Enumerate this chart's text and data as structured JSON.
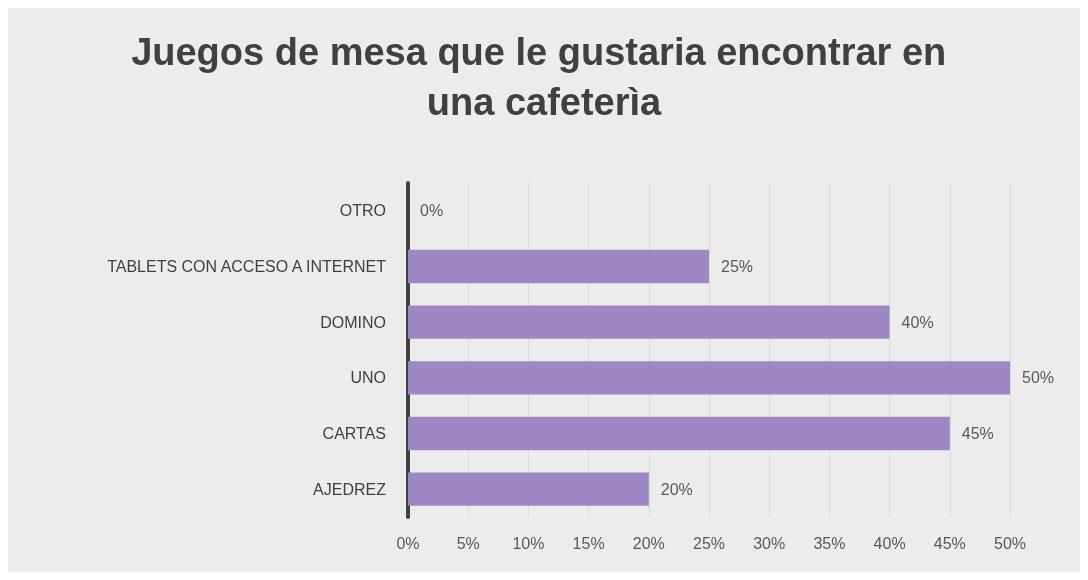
{
  "chart_data": {
    "type": "bar",
    "orientation": "horizontal",
    "title": "Juegos de mesa que le gustaria encontrar en una cafeterìa",
    "categories": [
      "OTRO",
      "TABLETS CON ACCESO A INTERNET",
      "DOMINO",
      "UNO",
      "CARTAS",
      "AJEDREZ"
    ],
    "values": [
      0,
      25,
      40,
      50,
      45,
      20
    ],
    "value_labels": [
      "0%",
      "25%",
      "40%",
      "50%",
      "45%",
      "20%"
    ],
    "color": "#9f86c4",
    "xlim": [
      0,
      50
    ],
    "xticks": [
      {
        "value": 0,
        "label": "0%"
      },
      {
        "value": 5,
        "label": "5%"
      },
      {
        "value": 10,
        "label": "10%"
      },
      {
        "value": 15,
        "label": "15%"
      },
      {
        "value": 20,
        "label": "20%"
      },
      {
        "value": 25,
        "label": "25%"
      },
      {
        "value": 30,
        "label": "30%"
      },
      {
        "value": 35,
        "label": "35%"
      },
      {
        "value": 40,
        "label": "40%"
      },
      {
        "value": 45,
        "label": "45%"
      },
      {
        "value": 50,
        "label": "50%"
      }
    ],
    "grid": "x"
  }
}
